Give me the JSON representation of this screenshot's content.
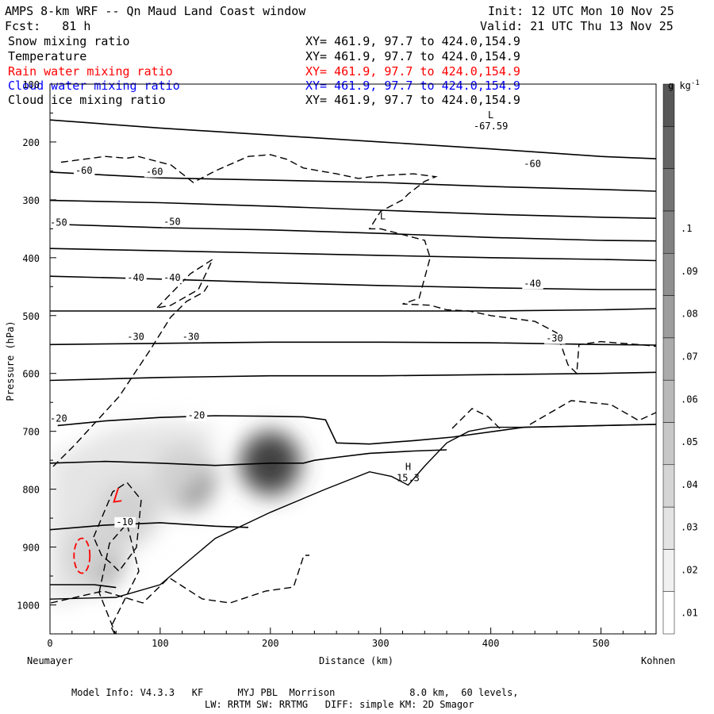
{
  "header": {
    "title": "AMPS 8-km WRF -- Qn Maud Land Coast window",
    "init": "Init: 12 UTC Mon 10 Nov 25",
    "forecast": "Fcst:   81 h",
    "valid": "Valid: 21 UTC Thu 13 Nov 25"
  },
  "fields": [
    {
      "name": "Snow mixing ratio",
      "xy": "XY= 461.9, 97.7 to 424.0,154.9",
      "color": "#000000"
    },
    {
      "name": "Temperature",
      "xy": "XY= 461.9, 97.7 to 424.0,154.9",
      "color": "#000000"
    },
    {
      "name": "Rain water mixing ratio",
      "xy": "XY= 461.9, 97.7 to 424.0,154.9",
      "color": "#ff0000"
    },
    {
      "name": "Cloud water mixing ratio",
      "xy": "XY= 461.9, 97.7 to 424.0,154.9",
      "color": "#0000ff"
    },
    {
      "name": "Cloud ice mixing ratio",
      "xy": "XY= 461.9, 97.7 to 424.0,154.9",
      "color": "#000000"
    }
  ],
  "chart_data": {
    "type": "cross-section contour",
    "xlabel": "Distance (km)",
    "ylabel": "Pressure (hPa)",
    "xlim": [
      0,
      550
    ],
    "ylim": [
      1050,
      100
    ],
    "x_ticks": [
      0,
      100,
      200,
      300,
      400,
      500
    ],
    "y_ticks": [
      100,
      200,
      300,
      400,
      500,
      600,
      700,
      800,
      900,
      1000
    ],
    "left_endpoint": "Neumayer",
    "right_endpoint": "Kohnen",
    "colorbar": {
      "unit": "g kg",
      "unit_exponent": "-1",
      "ticks": [
        ".01",
        ".02",
        ".03",
        ".04",
        ".05",
        ".06",
        ".07",
        ".08",
        ".09",
        ".1"
      ]
    },
    "temperature_labels": [
      "-60",
      "-60",
      "-60",
      "-50",
      "-50",
      "-40",
      "-40",
      "-40",
      "-30",
      "-30",
      "-30",
      "-20",
      "-20",
      "-10"
    ],
    "extrema": [
      {
        "type": "L",
        "value": "-67.59",
        "x_km": 400,
        "p_hPa": 170
      },
      {
        "type": "H",
        "value": "15.3",
        "x_km": 325,
        "p_hPa": 778
      },
      {
        "type": "L",
        "value": "",
        "x_km": 302,
        "p_hPa": 345
      }
    ],
    "temperature_contours": [
      {
        "level": -67,
        "x": [
          0,
          100,
          200,
          300,
          400,
          500,
          550
        ],
        "p": [
          162,
          176,
          188,
          200,
          212,
          225,
          229
        ]
      },
      {
        "level": -60,
        "x": [
          0,
          100,
          200,
          300,
          400,
          500,
          550
        ],
        "p": [
          252,
          262,
          266,
          270,
          277,
          282,
          285
        ]
      },
      {
        "level": -55,
        "x": [
          0,
          100,
          200,
          300,
          400,
          500,
          550
        ],
        "p": [
          301,
          305,
          311,
          318,
          325,
          330,
          332
        ]
      },
      {
        "level": -50,
        "x": [
          0,
          100,
          200,
          300,
          400,
          500,
          550
        ],
        "p": [
          342,
          348,
          352,
          358,
          365,
          370,
          371
        ]
      },
      {
        "level": -45,
        "x": [
          0,
          100,
          200,
          300,
          400,
          500,
          550
        ],
        "p": [
          384,
          388,
          392,
          396,
          400,
          403,
          405
        ]
      },
      {
        "level": -40,
        "x": [
          0,
          100,
          200,
          300,
          400,
          500,
          550
        ],
        "p": [
          432,
          437,
          443,
          448,
          452,
          455,
          455
        ]
      },
      {
        "level": -35,
        "x": [
          0,
          100,
          200,
          300,
          400,
          500,
          550
        ],
        "p": [
          492,
          492,
          492,
          492,
          492,
          490,
          488
        ]
      },
      {
        "level": -30,
        "x": [
          0,
          100,
          200,
          300,
          400,
          500,
          550
        ],
        "p": [
          550,
          548,
          546,
          546,
          547,
          550,
          551
        ]
      },
      {
        "level": -25,
        "x": [
          0,
          100,
          200,
          300,
          400,
          500,
          550
        ],
        "p": [
          612,
          607,
          604,
          604,
          602,
          600,
          598
        ]
      },
      {
        "level": -20,
        "x": [
          7,
          50,
          100,
          150,
          200,
          230,
          250,
          260,
          290,
          330,
          365,
          430,
          500,
          550
        ],
        "p": [
          690,
          682,
          676,
          673,
          674,
          675,
          680,
          720,
          722,
          716,
          710,
          693,
          690,
          688
        ]
      },
      {
        "level": -15,
        "x": [
          0,
          50,
          100,
          150,
          200,
          230,
          240,
          260,
          290,
          330,
          360
        ],
        "p": [
          755,
          752,
          755,
          759,
          755,
          755,
          750,
          745,
          738,
          734,
          732
        ]
      },
      {
        "level": -10,
        "x": [
          0,
          50,
          100,
          150,
          180
        ],
        "p": [
          870,
          862,
          858,
          864,
          866
        ]
      },
      {
        "level": -5,
        "x": [
          0,
          40,
          60
        ],
        "p": [
          965,
          965,
          970
        ]
      }
    ],
    "terrain": {
      "x": [
        0,
        60,
        100,
        150,
        200,
        250,
        290,
        310,
        325,
        340,
        360,
        380,
        400,
        430,
        550
      ],
      "p": [
        990,
        987,
        965,
        885,
        840,
        800,
        770,
        778,
        793,
        760,
        720,
        700,
        693,
        693,
        688
      ]
    },
    "cloud_ice_contour": {
      "x": [
        10,
        30,
        50,
        70,
        80,
        110,
        130,
        150,
        180,
        200,
        215,
        230,
        260,
        280,
        300,
        330,
        350,
        340,
        325,
        320,
        300,
        290,
        300,
        340,
        345,
        335,
        320,
        345,
        360,
        380,
        400,
        440,
        460,
        470,
        478,
        480,
        500,
        540,
        550
      ],
      "p": [
        235,
        230,
        225,
        228,
        225,
        240,
        270,
        250,
        225,
        222,
        230,
        245,
        255,
        263,
        258,
        255,
        260,
        268,
        290,
        300,
        320,
        350,
        350,
        370,
        400,
        470,
        480,
        482,
        490,
        492,
        500,
        510,
        530,
        585,
        600,
        550,
        545,
        551,
        553
      ]
    },
    "snow_shading": [
      {
        "x_km": 200,
        "p_hPa": 755,
        "value": 0.095
      },
      {
        "x_km": 122,
        "p_hPa": 780,
        "value": 0.07
      },
      {
        "x_km": 70,
        "p_hPa": 840,
        "value": 0.065
      },
      {
        "x_km": 40,
        "p_hPa": 915,
        "value": 0.06
      }
    ]
  },
  "model_info": {
    "line1": "Model Info: V4.3.3   KF      MYJ PBL  Morrison             8.0 km,  60 levels,",
    "line2": "LW: RRTM SW: RRTMG   DIFF: simple KM: 2D Smagor"
  }
}
